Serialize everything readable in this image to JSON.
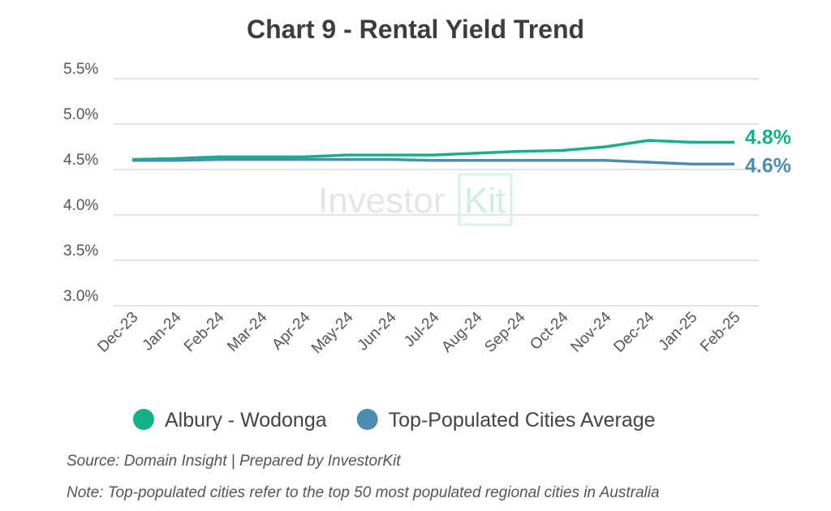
{
  "chart_data": {
    "type": "line",
    "title": "Chart 9 - Rental Yield Trend",
    "categories": [
      "Dec-23",
      "Jan-24",
      "Feb-24",
      "Mar-24",
      "Apr-24",
      "May-24",
      "Jun-24",
      "Jul-24",
      "Aug-24",
      "Sep-24",
      "Oct-24",
      "Nov-24",
      "Dec-24",
      "Jan-25",
      "Feb-25"
    ],
    "yticks": [
      "3.0%",
      "3.5%",
      "4.0%",
      "4.5%",
      "5.0%",
      "5.5%"
    ],
    "ylim": [
      3.0,
      5.5
    ],
    "grid": true,
    "legend_position": "bottom",
    "series": [
      {
        "name": "Albury - Wodonga",
        "color": "#14b088",
        "end_label": "4.8%",
        "values": [
          4.61,
          4.62,
          4.64,
          4.64,
          4.64,
          4.66,
          4.66,
          4.66,
          4.68,
          4.7,
          4.71,
          4.75,
          4.82,
          4.8,
          4.8
        ]
      },
      {
        "name": "Top-Populated Cities Average",
        "color": "#4a8db0",
        "end_label": "4.6%",
        "values": [
          4.6,
          4.6,
          4.61,
          4.61,
          4.61,
          4.61,
          4.61,
          4.6,
          4.6,
          4.6,
          4.6,
          4.6,
          4.58,
          4.56,
          4.56
        ]
      }
    ]
  },
  "watermark": "InvestorKit",
  "footer": {
    "source": "Source: Domain Insight | Prepared by InvestorKit",
    "note": "Note: Top-populated cities refer to the top 50 most populated regional cities in Australia"
  }
}
